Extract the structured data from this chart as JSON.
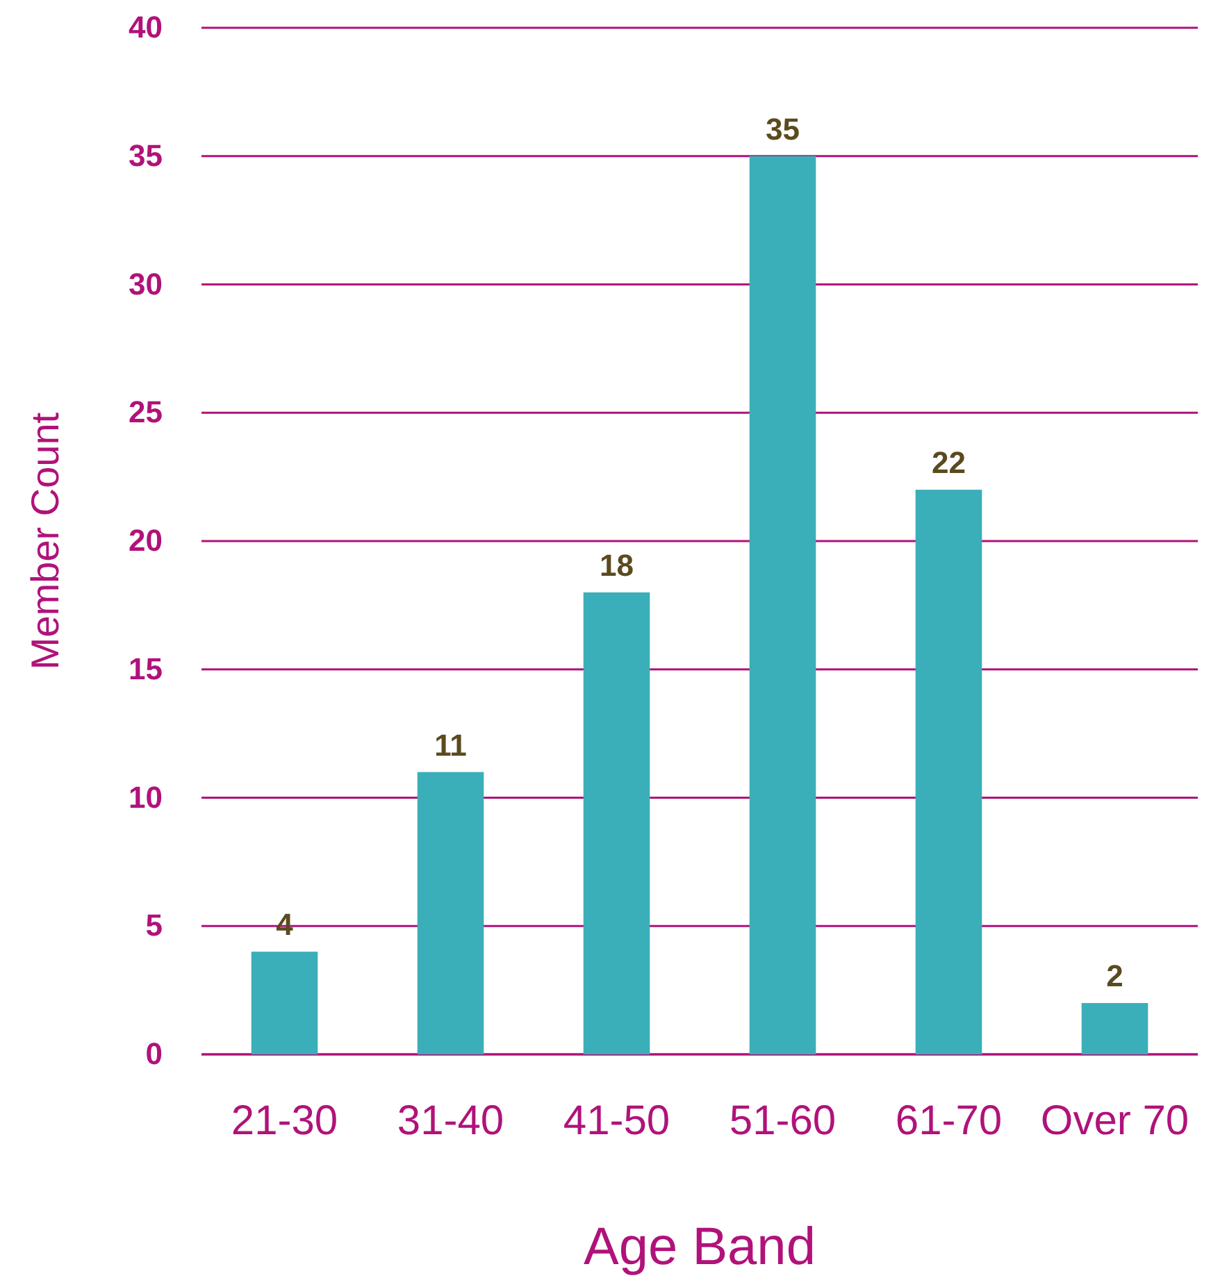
{
  "chart_data": {
    "type": "bar",
    "xlabel": "Age Band",
    "ylabel": "Member Count",
    "categories": [
      "21-30",
      "31-40",
      "41-50",
      "51-60",
      "61-70",
      "Over 70"
    ],
    "values": [
      4,
      11,
      18,
      35,
      22,
      2
    ],
    "color": "#3aafb9",
    "ylim": [
      0,
      40
    ],
    "yticks": [
      0,
      5,
      10,
      15,
      20,
      25,
      30,
      35,
      40
    ],
    "grid": "y",
    "data_labels": true
  }
}
